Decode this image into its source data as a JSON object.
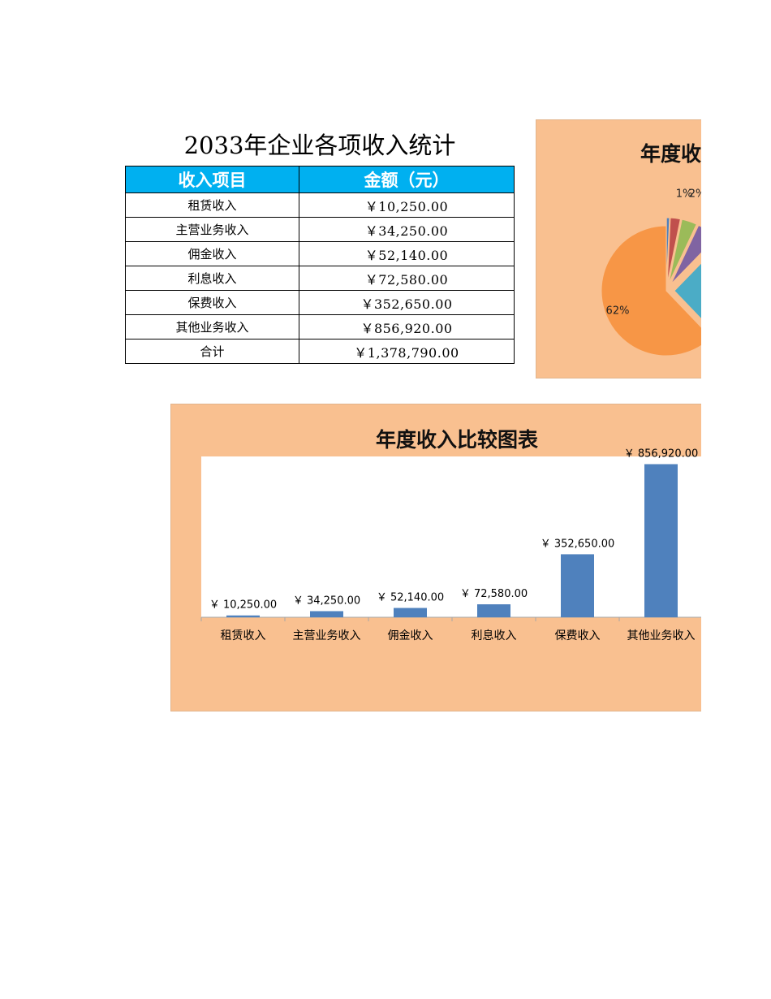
{
  "sheet": {
    "title": "2033年企业各项收入统计",
    "headers": [
      "收入项目",
      "金额（元）"
    ],
    "rows": [
      {
        "item": "租赁收入",
        "amount": "￥10,250.00"
      },
      {
        "item": "主营业务收入",
        "amount": "￥34,250.00"
      },
      {
        "item": "佣金收入",
        "amount": "￥52,140.00"
      },
      {
        "item": "利息收入",
        "amount": "￥72,580.00"
      },
      {
        "item": "保费收入",
        "amount": "￥352,650.00"
      },
      {
        "item": "其他业务收入",
        "amount": "￥856,920.00"
      },
      {
        "item": "合计",
        "amount": "￥1,378,790.00"
      }
    ]
  },
  "chart_data": [
    {
      "type": "pie",
      "title": "年度收",
      "categories": [
        "租赁收入",
        "主营业务收入",
        "佣金收入",
        "利息收入",
        "保费收入",
        "其他业务收入"
      ],
      "values": [
        10250,
        34250,
        52140,
        72580,
        352650,
        856920
      ],
      "colors": [
        "#4f81bd",
        "#c0504d",
        "#9bbb59",
        "#8064a2",
        "#4bacc6",
        "#f79646"
      ],
      "visible_labels": [
        "1%",
        "2%",
        "62%"
      ]
    },
    {
      "type": "bar",
      "title": "年度收入比较图表",
      "categories": [
        "租赁收入",
        "主营业务收入",
        "佣金收入",
        "利息收入",
        "保费收入",
        "其他业务收入"
      ],
      "values": [
        10250,
        34250,
        52140,
        72580,
        352650,
        856920
      ],
      "data_labels": [
        "￥ 10,250.00",
        "￥ 34,250.00",
        "￥ 52,140.00",
        "￥ 72,580.00",
        "￥ 352,650.00",
        "￥ 856,920.00"
      ],
      "ylim": [
        0,
        900000
      ],
      "bar_color": "#4f81bd",
      "grid": false
    }
  ]
}
